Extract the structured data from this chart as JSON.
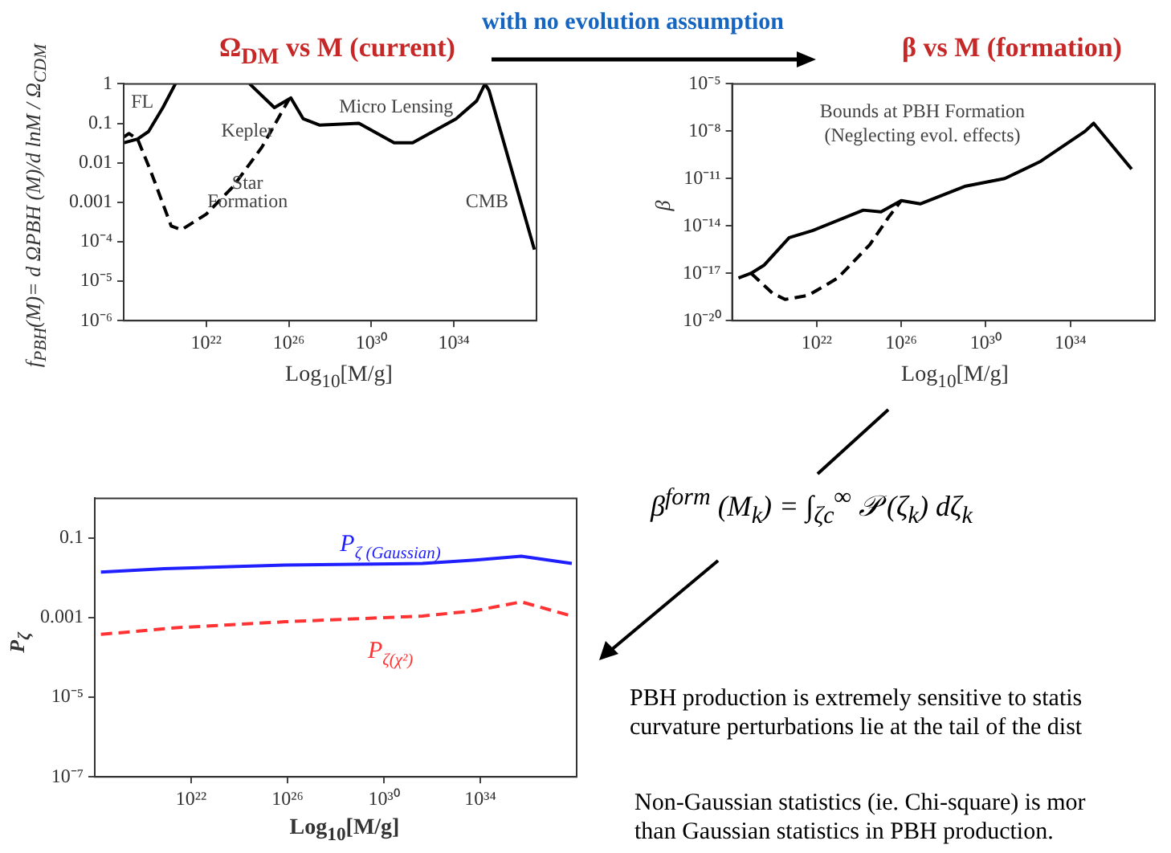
{
  "chart_data": [
    {
      "type": "line",
      "title": "Ω$_{DM}$ vs M (current)",
      "xlabel": "Log$_{10}$[M/g]",
      "ylabel": "f$_{PBH}$(M)= d ΩPBH (M)/d lnM / Ω$_{CDM}$",
      "log": "xy",
      "xlim": [
        1e+18,
        1e+38
      ],
      "ylim": [
        1e-06,
        1
      ],
      "xticks": [
        {
          "value": 1e+22,
          "label": "10²²"
        },
        {
          "value": 1e+26,
          "label": "10²⁶"
        },
        {
          "value": 1e+30,
          "label": "10³⁰"
        },
        {
          "value": 1e+34,
          "label": "10³⁴"
        }
      ],
      "yticks": [
        {
          "value": 1e-06,
          "label": "10⁻⁶"
        },
        {
          "value": 1e-05,
          "label": "10⁻⁵"
        },
        {
          "value": 0.0001,
          "label": "10⁻⁴"
        },
        0.001,
        0.01,
        0.1,
        1
      ],
      "series": [
        {
          "color": "#000000",
          "line_style": "solid",
          "x": [
            1e+18,
            4.7e+18,
            1.6e+19,
            7.9e+19,
            3.2e+20,
            1e+22,
            1.26e+24,
            2e+25,
            1.26e+26,
            5e+26,
            3.2e+27,
            2.5e+29,
            1.26e+31,
            1e+32,
            1.26e+34,
            1.26e+35,
            3.2e+35,
            5e+35,
            7.9e+37
          ],
          "values": [
            0.032,
            0.04,
            0.062,
            0.25,
            1,
            null,
            1,
            0.25,
            0.44,
            0.13,
            0.09,
            0.1,
            0.032,
            0.032,
            0.13,
            0.37,
            1,
            0.68,
            6.3e-05
          ]
        },
        {
          "color": "#000000",
          "line_style": "dashed",
          "x": [
            1e+18,
            1.8e+18,
            4.7e+18,
            2e+19,
            2e+20,
            6.3e+20,
            1e+22,
            2e+23,
            5e+24,
            1e+26
          ],
          "values": [
            0.045,
            0.055,
            0.04,
            0.0063,
            0.00025,
            0.0002,
            0.0005,
            0.0025,
            0.025,
            0.4
          ]
        }
      ],
      "annotations": [
        "FL",
        "Kepler",
        "Micro Lensing",
        "Star",
        "Formation",
        "CMB"
      ]
    },
    {
      "type": "line",
      "title": "β vs M (formation)",
      "xlabel": "Log$_{10}$[M/g]",
      "ylabel": "β",
      "log": "xy",
      "xlim": [
        1e+18,
        1e+38
      ],
      "ylim": [
        1e-20,
        1e-05
      ],
      "xticks": [
        {
          "value": 1e+22,
          "label": "10²²"
        },
        {
          "value": 1e+26,
          "label": "10²⁶"
        },
        {
          "value": 1e+30,
          "label": "10³⁰"
        },
        {
          "value": 1e+34,
          "label": "10³⁴"
        }
      ],
      "yticks": [
        {
          "value": 1e-20,
          "label": "10⁻²⁰"
        },
        {
          "value": 1e-17,
          "label": "10⁻¹⁷"
        },
        {
          "value": 1e-14,
          "label": "10⁻¹⁴"
        },
        {
          "value": 1e-11,
          "label": "10⁻¹¹"
        },
        {
          "value": 1e-08,
          "label": "10⁻⁸"
        },
        {
          "value": 1e-05,
          "label": "10⁻⁵"
        }
      ],
      "series": [
        {
          "color": "#000000",
          "line_style": "solid",
          "x": [
            2e+18,
            7.9e+18,
            3.2e+19,
            5e+20,
            6.3e+21,
            1.6e+24,
            1.1e+25,
            1e+26,
            7.9e+26,
            1e+29,
            7.9e+30,
            4e+32,
            5e+34,
            1.26e+35,
            7.9e+36
          ],
          "values": [
            5e-18,
            1e-17,
            3.2e-17,
            1.8e-15,
            5e-15,
            1e-13,
            7.9e-14,
            4e-13,
            2.5e-13,
            3.2e-12,
            1e-11,
            1.26e-10,
            1e-08,
            3.2e-08,
            4e-11
          ]
        },
        {
          "color": "#000000",
          "line_style": "dashed",
          "x": [
            7.9e+18,
            7.9e+19,
            3.2e+20,
            4e+21,
            1e+23,
            3.2e+24,
            2.5e+25,
            1e+26
          ],
          "values": [
            1e-17,
            5.6e-19,
            2.2e-19,
            4e-19,
            5e-18,
            6.3e-16,
            3.5e-14,
            4e-13
          ]
        }
      ],
      "annotations": [
        "Bounds at PBH Formation",
        "(Neglecting evol. effects)"
      ]
    },
    {
      "type": "line",
      "xlabel": "Log$_{10}$[M/g]",
      "ylabel": "P$_{ζ}$",
      "log": "xy",
      "xlim": [
        1e+18,
        1e+38
      ],
      "ylim": [
        1e-07,
        1
      ],
      "xticks": [
        {
          "value": 1e+22,
          "label": "10²²"
        },
        {
          "value": 1e+26,
          "label": "10²⁶"
        },
        {
          "value": 1e+30,
          "label": "10³⁰"
        },
        {
          "value": 1e+34,
          "label": "10³⁴"
        }
      ],
      "yticks": [
        {
          "value": 1e-07,
          "label": "10⁻⁷"
        },
        {
          "value": 1e-05,
          "label": "10⁻⁵"
        },
        0.001,
        0.1
      ],
      "series": [
        {
          "name": "P$_{ζ (Gaussian)}$",
          "color": "#1f1fff",
          "line_style": "solid",
          "x": [
            1.8e+18,
            7.9e+20,
            7.9e+25,
            4e+31,
            6.3e+33,
            5e+35,
            6.3e+37
          ],
          "values": [
            0.014,
            0.017,
            0.021,
            0.023,
            0.028,
            0.035,
            0.023
          ]
        },
        {
          "name": "P$_{ζ(χ²)}$",
          "color": "#ff3333",
          "line_style": "dashed",
          "x": [
            1.8e+18,
            2.5e+21,
            7.9e+25,
            4e+31,
            6.3e+33,
            5e+35,
            6.3e+37
          ],
          "values": [
            0.00038,
            0.00056,
            0.00079,
            0.0011,
            0.0015,
            0.0025,
            0.0011
          ]
        }
      ]
    },
    {
      "type": "other",
      "annotations": [
        "with no evolution assumption",
        "β$^{form}$ (M$_{k}$) = ∫$_{ζc}$$^{∞}$ 𝒫 (ζ$_{k}$) dζ$_{k}$",
        "PBH production is extremely sensitive to statis",
        "curvature perturbations lie at the tail of the dist",
        "Non-Gaussian statistics (ie. Chi-square) is mor",
        "than Gaussian statistics in PBH production."
      ]
    }
  ]
}
